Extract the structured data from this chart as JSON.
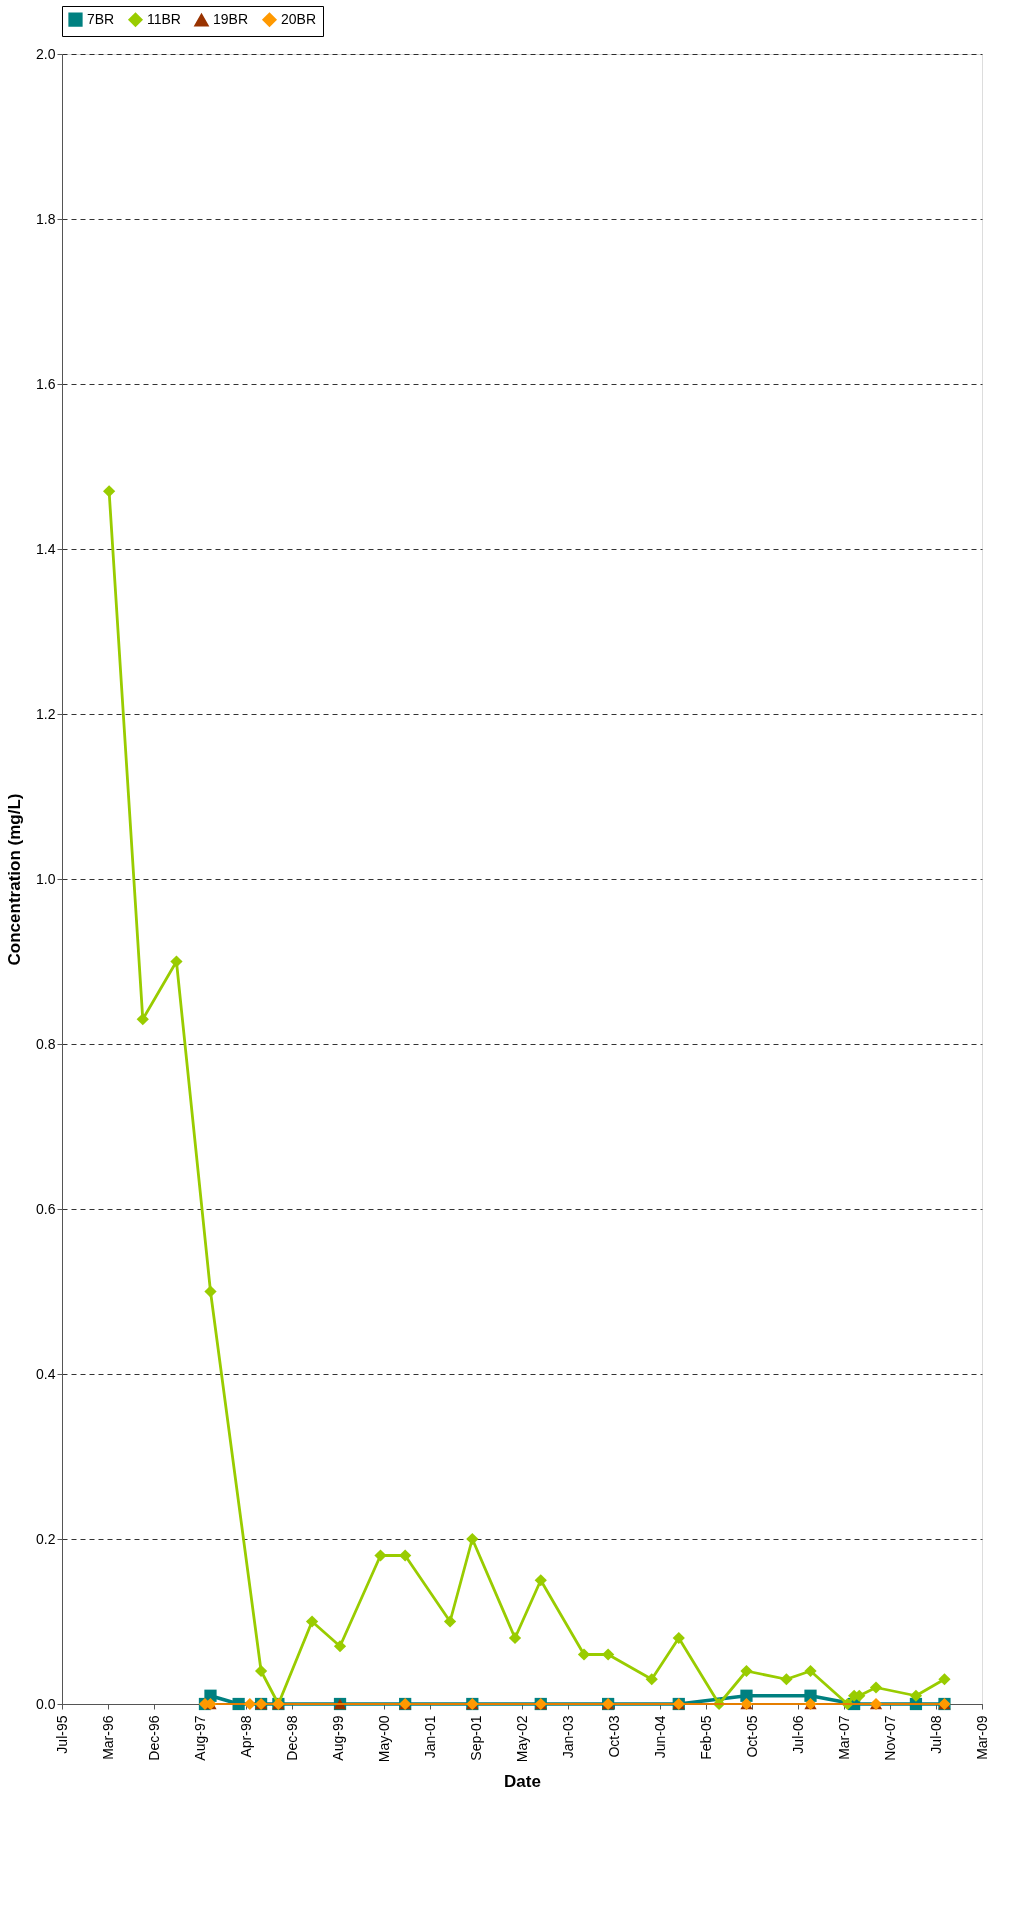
{
  "chart_data": {
    "type": "line",
    "xlabel": "Date",
    "ylabel": "Concentration (mg/L)",
    "xlim": [
      "1995-07-20",
      "2009-03-28"
    ],
    "xticks": [
      {
        "value": "1995-07-20",
        "label": "Jul-95"
      },
      {
        "value": "1996-03-26",
        "label": "Mar-96"
      },
      {
        "value": "1996-12-01",
        "label": "Dec-96"
      },
      {
        "value": "1997-08-08",
        "label": "Aug-97"
      },
      {
        "value": "1998-04-15",
        "label": "Apr-98"
      },
      {
        "value": "1998-12-21",
        "label": "Dec-98"
      },
      {
        "value": "1999-08-28",
        "label": "Aug-99"
      },
      {
        "value": "2000-05-04",
        "label": "May-00"
      },
      {
        "value": "2001-01-09",
        "label": "Jan-01"
      },
      {
        "value": "2001-09-16",
        "label": "Sep-01"
      },
      {
        "value": "2002-05-24",
        "label": "May-02"
      },
      {
        "value": "2003-01-29",
        "label": "Jan-03"
      },
      {
        "value": "2003-10-06",
        "label": "Oct-03"
      },
      {
        "value": "2004-06-12",
        "label": "Jun-04"
      },
      {
        "value": "2005-02-17",
        "label": "Feb-05"
      },
      {
        "value": "2005-10-25",
        "label": "Oct-05"
      },
      {
        "value": "2006-07-02",
        "label": "Jul-06"
      },
      {
        "value": "2007-03-09",
        "label": "Mar-07"
      },
      {
        "value": "2007-11-14",
        "label": "Nov-07"
      },
      {
        "value": "2008-07-21",
        "label": "Jul-08"
      },
      {
        "value": "2009-03-28",
        "label": "Mar-09"
      }
    ],
    "ylim": [
      0,
      2
    ],
    "yticks": [
      {
        "value": 0,
        "label": "0.0"
      },
      0.2,
      0.4,
      0.6,
      0.8,
      {
        "value": 1,
        "label": "1.0"
      },
      1.2,
      1.4,
      1.6,
      1.8,
      {
        "value": 2,
        "label": "2.0"
      }
    ],
    "grid": "y",
    "legend": "top",
    "line_style": "solid",
    "series": [
      {
        "name": "7BR",
        "color": "#008080",
        "marker": "square",
        "x": [
          "1997-09-04",
          "1997-10-04",
          "1998-03-06",
          "1998-07-06",
          "1998-10-08",
          "1999-09-08",
          "2000-08-27",
          "2001-08-27",
          "2002-09-03",
          "2003-09-04",
          "2004-09-22",
          "2005-09-25",
          "2006-09-08",
          "2007-05-03",
          "2008-04-03",
          "2008-09-05"
        ],
        "values": [
          0,
          0.01,
          0,
          0,
          0,
          0,
          0,
          0,
          0,
          0,
          0,
          0.01,
          0.01,
          0,
          0,
          0
        ]
      },
      {
        "name": "11BR",
        "color": "#99cc00",
        "marker": "diamond",
        "x": [
          "1996-04-01",
          "1996-10-01",
          "1997-04-02",
          "1997-10-04",
          "1998-07-06",
          "1998-10-08",
          "1999-04-09",
          "1999-09-08",
          "2000-04-15",
          "2000-08-27",
          "2001-04-28",
          "2001-08-27",
          "2002-04-16",
          "2002-09-03",
          "2003-04-26",
          "2003-09-04",
          "2004-04-28",
          "2004-09-22",
          "2005-04-29",
          "2005-09-25",
          "2006-04-30",
          "2006-09-08",
          "2007-03-28",
          "2007-05-03",
          "2007-05-31",
          "2007-08-30",
          "2008-04-03",
          "2008-09-05"
        ],
        "values": [
          1.47,
          0.83,
          0.9,
          0.5,
          0.04,
          0,
          0.1,
          0.07,
          0.18,
          0.18,
          0.1,
          0.2,
          0.08,
          0.15,
          0.06,
          0.06,
          0.03,
          0.08,
          0,
          0.04,
          0.03,
          0.04,
          0,
          0.01,
          0.01,
          0.02,
          0.01,
          0.03
        ]
      },
      {
        "name": "19BR",
        "color": "#993300",
        "marker": "triangle",
        "x": [
          "1997-10-04",
          "1998-07-06",
          "1998-10-08",
          "1999-09-08",
          "2000-08-27",
          "2001-08-27",
          "2002-09-03",
          "2003-09-04",
          "2004-09-22",
          "2005-09-25",
          "2006-09-08",
          "2007-08-30",
          "2008-09-05"
        ],
        "values": [
          0,
          0,
          0,
          0,
          0,
          0,
          0,
          0,
          0,
          0,
          0,
          0,
          0
        ]
      },
      {
        "name": "20BR",
        "color": "#ff9900",
        "marker": "diamond",
        "x": [
          "1997-09-04",
          "1997-10-04",
          "1998-05-06",
          "1998-07-06",
          "1998-10-08",
          "2000-08-27",
          "2001-08-27",
          "2002-09-03",
          "2003-09-04",
          "2004-09-22",
          "2005-09-25",
          "2006-09-08",
          "2007-08-30",
          "2008-09-05"
        ],
        "values": [
          0,
          0,
          0,
          0,
          0,
          0,
          0,
          0,
          0,
          0,
          0,
          0,
          0,
          0
        ]
      }
    ]
  }
}
